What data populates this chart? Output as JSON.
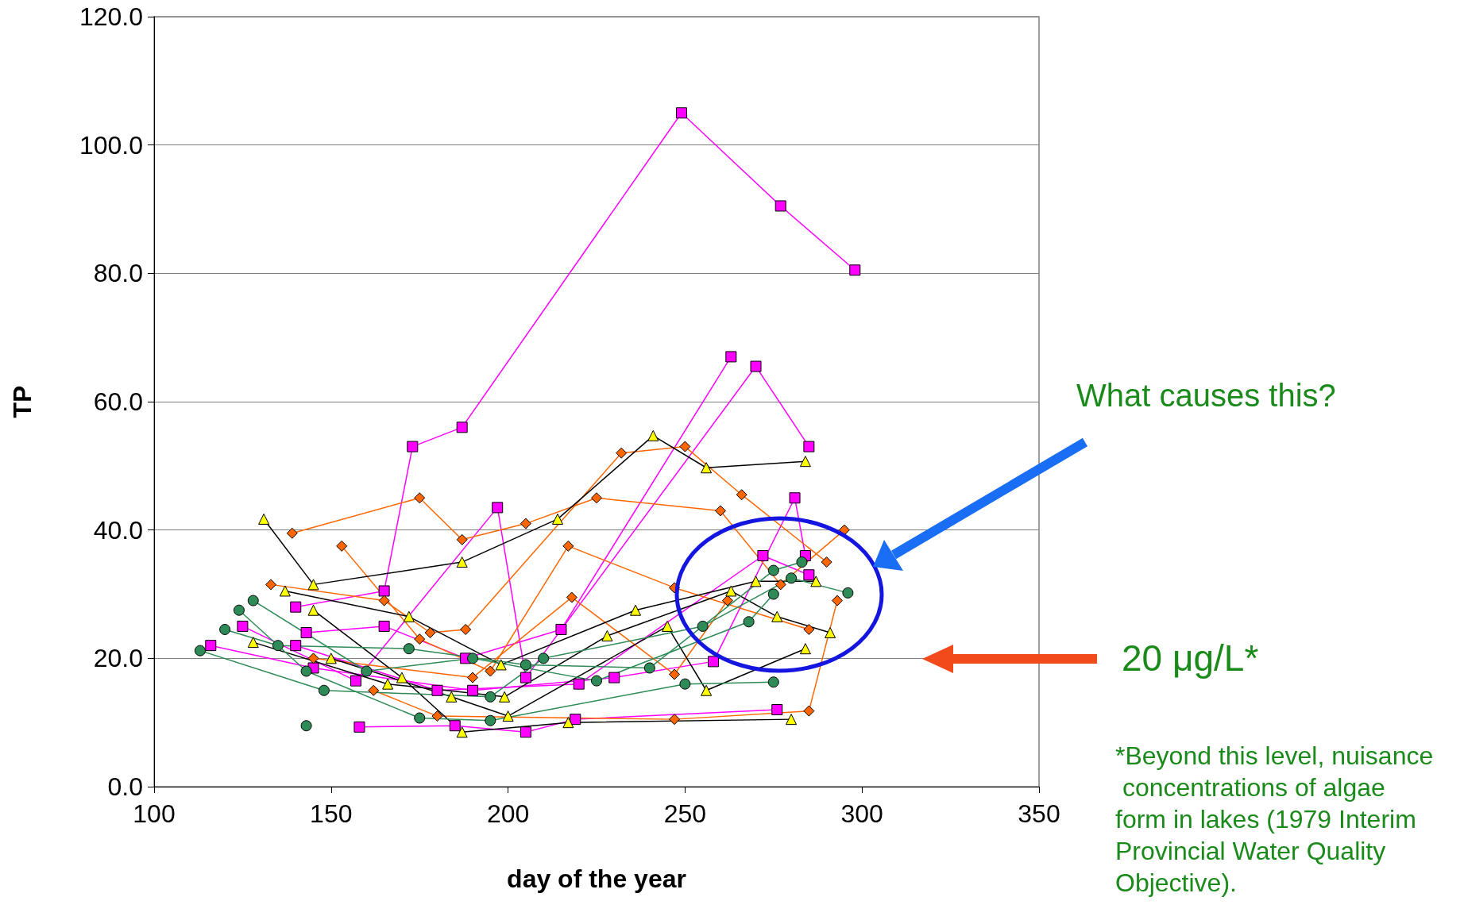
{
  "chart_data": {
    "type": "line",
    "xlabel": "day of the year",
    "ylabel": "TP",
    "xlim": [
      100,
      350
    ],
    "xticks": [
      100,
      150,
      200,
      250,
      300,
      350
    ],
    "ylim": [
      0,
      120
    ],
    "yticks": [
      {
        "value": 0,
        "label": "0.0"
      },
      {
        "value": 20,
        "label": "20.0"
      },
      {
        "value": 40,
        "label": "40.0"
      },
      {
        "value": 60,
        "label": "60.0"
      },
      {
        "value": 80,
        "label": "80.0"
      },
      {
        "value": 100,
        "label": "100.0"
      },
      {
        "value": 120,
        "label": "120.0"
      }
    ],
    "grid": "y",
    "annotations": [
      "What causes this?",
      "20 μg/L*",
      "*Beyond this level, nuisance concentrations of algae form in lakes (1979 Interim Provincial Water Quality Objective)."
    ],
    "series": [
      {
        "color": "#ff00ff",
        "marker": "square",
        "x": [
          140,
          165,
          173,
          187,
          249,
          277,
          298
        ],
        "values": [
          28,
          30.5,
          53,
          56,
          105,
          90.5,
          80.5
        ]
      },
      {
        "color": "#ff00ff",
        "marker": "square",
        "x": [
          143,
          165,
          188,
          215,
          263
        ],
        "values": [
          24,
          25,
          20,
          24.5,
          67
        ]
      },
      {
        "color": "#ff00ff",
        "marker": "square",
        "x": [
          125,
          157,
          197,
          205,
          270,
          285
        ],
        "values": [
          25,
          16.5,
          43.5,
          17,
          65.5,
          53
        ]
      },
      {
        "color": "#ff00ff",
        "marker": "square",
        "x": [
          140,
          180,
          220,
          272,
          285
        ],
        "values": [
          22,
          15,
          16,
          36,
          33
        ]
      },
      {
        "color": "#ff00ff",
        "marker": "square",
        "x": [
          158,
          185,
          205,
          219,
          276
        ],
        "values": [
          9.3,
          9.5,
          8.5,
          10.5,
          12
        ]
      },
      {
        "color": "#ff00ff",
        "marker": "square",
        "x": [
          116,
          145,
          190,
          230,
          258,
          281,
          284
        ],
        "values": [
          22,
          18.5,
          15,
          17,
          19.5,
          45,
          36
        ]
      },
      {
        "color": "#ff6600",
        "marker": "diamond",
        "x": [
          133,
          165,
          178,
          188,
          232,
          250,
          266,
          290
        ],
        "values": [
          31.5,
          29,
          24,
          24.5,
          52,
          53,
          45.5,
          35
        ]
      },
      {
        "color": "#ff6600",
        "marker": "diamond",
        "x": [
          139,
          175,
          187,
          205,
          225,
          260,
          277,
          295
        ],
        "values": [
          39.5,
          45,
          38.5,
          41,
          45,
          43,
          31.5,
          40
        ]
      },
      {
        "color": "#ff6600",
        "marker": "diamond",
        "x": [
          153,
          175,
          195,
          217,
          247,
          285
        ],
        "values": [
          37.5,
          23,
          18,
          37.5,
          31,
          24.5
        ]
      },
      {
        "color": "#ff6600",
        "marker": "diamond",
        "x": [
          162,
          180,
          247,
          285,
          293
        ],
        "values": [
          15,
          11,
          10.5,
          11.8,
          29
        ]
      },
      {
        "color": "#ff6600",
        "marker": "diamond",
        "x": [
          145,
          190,
          218,
          247,
          262
        ],
        "values": [
          20,
          17,
          29.5,
          17.5,
          29
        ]
      },
      {
        "color": "#000000",
        "colors": [
          "#ffff00",
          "#ffff00",
          "#ffff00",
          "#ffff00",
          "#ffff00",
          "#ffff00",
          "#ffff00"
        ],
        "marker": "triangle",
        "x": [
          131,
          145,
          187,
          214,
          241,
          256,
          284
        ],
        "values": [
          41.7,
          31.5,
          35,
          41.7,
          54.7,
          49.7,
          50.7
        ]
      },
      {
        "color": "#000000",
        "colors": [
          "#ffff00",
          "#ffff00",
          "#ffff00",
          "#ffff00",
          "#ffff00",
          "#ffff00"
        ],
        "marker": "triangle",
        "x": [
          137,
          172,
          198,
          236,
          270,
          287
        ],
        "values": [
          30.5,
          26.5,
          19,
          27.5,
          32,
          32
        ]
      },
      {
        "color": "#000000",
        "colors": [
          "#ffff00",
          "#ffff00",
          "#ffff00",
          "#ffff00",
          "#ffff00"
        ],
        "marker": "triangle",
        "x": [
          145,
          170,
          187,
          217,
          280
        ],
        "values": [
          27.5,
          17,
          8.5,
          10,
          10.5
        ]
      },
      {
        "color": "#000000",
        "colors": [
          "#ffff00",
          "#ffff00",
          "#ffff00",
          "#ffff00",
          "#ffff00",
          "#ffff00",
          "#ffff00"
        ],
        "marker": "triangle",
        "x": [
          128,
          166,
          199,
          228,
          263,
          276,
          291
        ],
        "values": [
          22.5,
          16,
          14,
          23.5,
          30.5,
          26.5,
          24
        ]
      },
      {
        "color": "#000000",
        "colors": [
          "#ffff00",
          "#ffff00",
          "#ffff00",
          "#ffff00",
          "#ffff00",
          "#ffff00"
        ],
        "marker": "triangle",
        "x": [
          150,
          184,
          200,
          245,
          256,
          284
        ],
        "values": [
          20,
          14,
          11,
          25,
          15,
          21.5
        ]
      },
      {
        "color": "#2e8b57",
        "marker": "circle",
        "x": [
          113,
          148,
          195,
          210,
          255,
          280,
          296
        ],
        "values": [
          21.2,
          15,
          14,
          20,
          25,
          32.5,
          30.2
        ]
      },
      {
        "color": "#2e8b57",
        "marker": "circle",
        "x": [
          120,
          135,
          172,
          205,
          240,
          275,
          283
        ],
        "values": [
          24.5,
          22,
          21.5,
          19,
          18.5,
          33.7,
          35
        ]
      },
      {
        "color": "#2e8b57",
        "marker": "circle",
        "x": [
          124,
          143,
          175,
          195,
          250,
          275
        ],
        "values": [
          27.5,
          18,
          10.7,
          10.3,
          16,
          16.3
        ]
      },
      {
        "color": "#2e8b57",
        "marker": "circle",
        "x": [
          128,
          160,
          190,
          225,
          268,
          275
        ],
        "values": [
          29,
          18,
          20,
          16.5,
          25.7,
          30
        ]
      },
      {
        "color": "#2e8b57",
        "marker": "circle",
        "x": [
          143
        ],
        "values": [
          9.5
        ]
      }
    ]
  }
}
